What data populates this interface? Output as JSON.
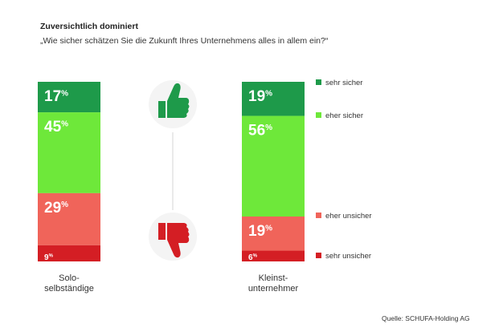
{
  "title": "Zuversichtlich dominiert",
  "subtitle": "„Wie sicher schätzen Sie die Zukunft Ihres Unternehmens alles in allem ein?“",
  "source": "Quelle: SCHUFA-Holding AG",
  "colors": {
    "sehr_sicher": "#1e9a4a",
    "eher_sicher": "#6ee83a",
    "eher_unsicher": "#f0645a",
    "sehr_unsicher": "#d41e24",
    "thumb_up_bg": "#1e9a4a",
    "thumb_down_bg": "#d41e24"
  },
  "icons": {
    "up": "thumbs-up-icon",
    "down": "thumbs-down-icon"
  },
  "chart_data": {
    "type": "bar",
    "stacked": true,
    "orientation": "vertical",
    "categories": [
      "Solo-\nselbständige",
      "Kleinst-\nunternehmer"
    ],
    "unit": "%",
    "series": [
      {
        "name": "sehr sicher",
        "values": [
          17,
          19
        ]
      },
      {
        "name": "eher sicher",
        "values": [
          45,
          56
        ]
      },
      {
        "name": "eher unsicher",
        "values": [
          29,
          19
        ]
      },
      {
        "name": "sehr unsicher",
        "values": [
          9,
          6
        ]
      }
    ],
    "legend_position": "right",
    "title": "Zuversichtlich dominiert",
    "subtitle": "„Wie sicher schätzen Sie die Zukunft Ihres Unternehmens alles in allem ein?“",
    "xlabel": "",
    "ylabel": ""
  }
}
